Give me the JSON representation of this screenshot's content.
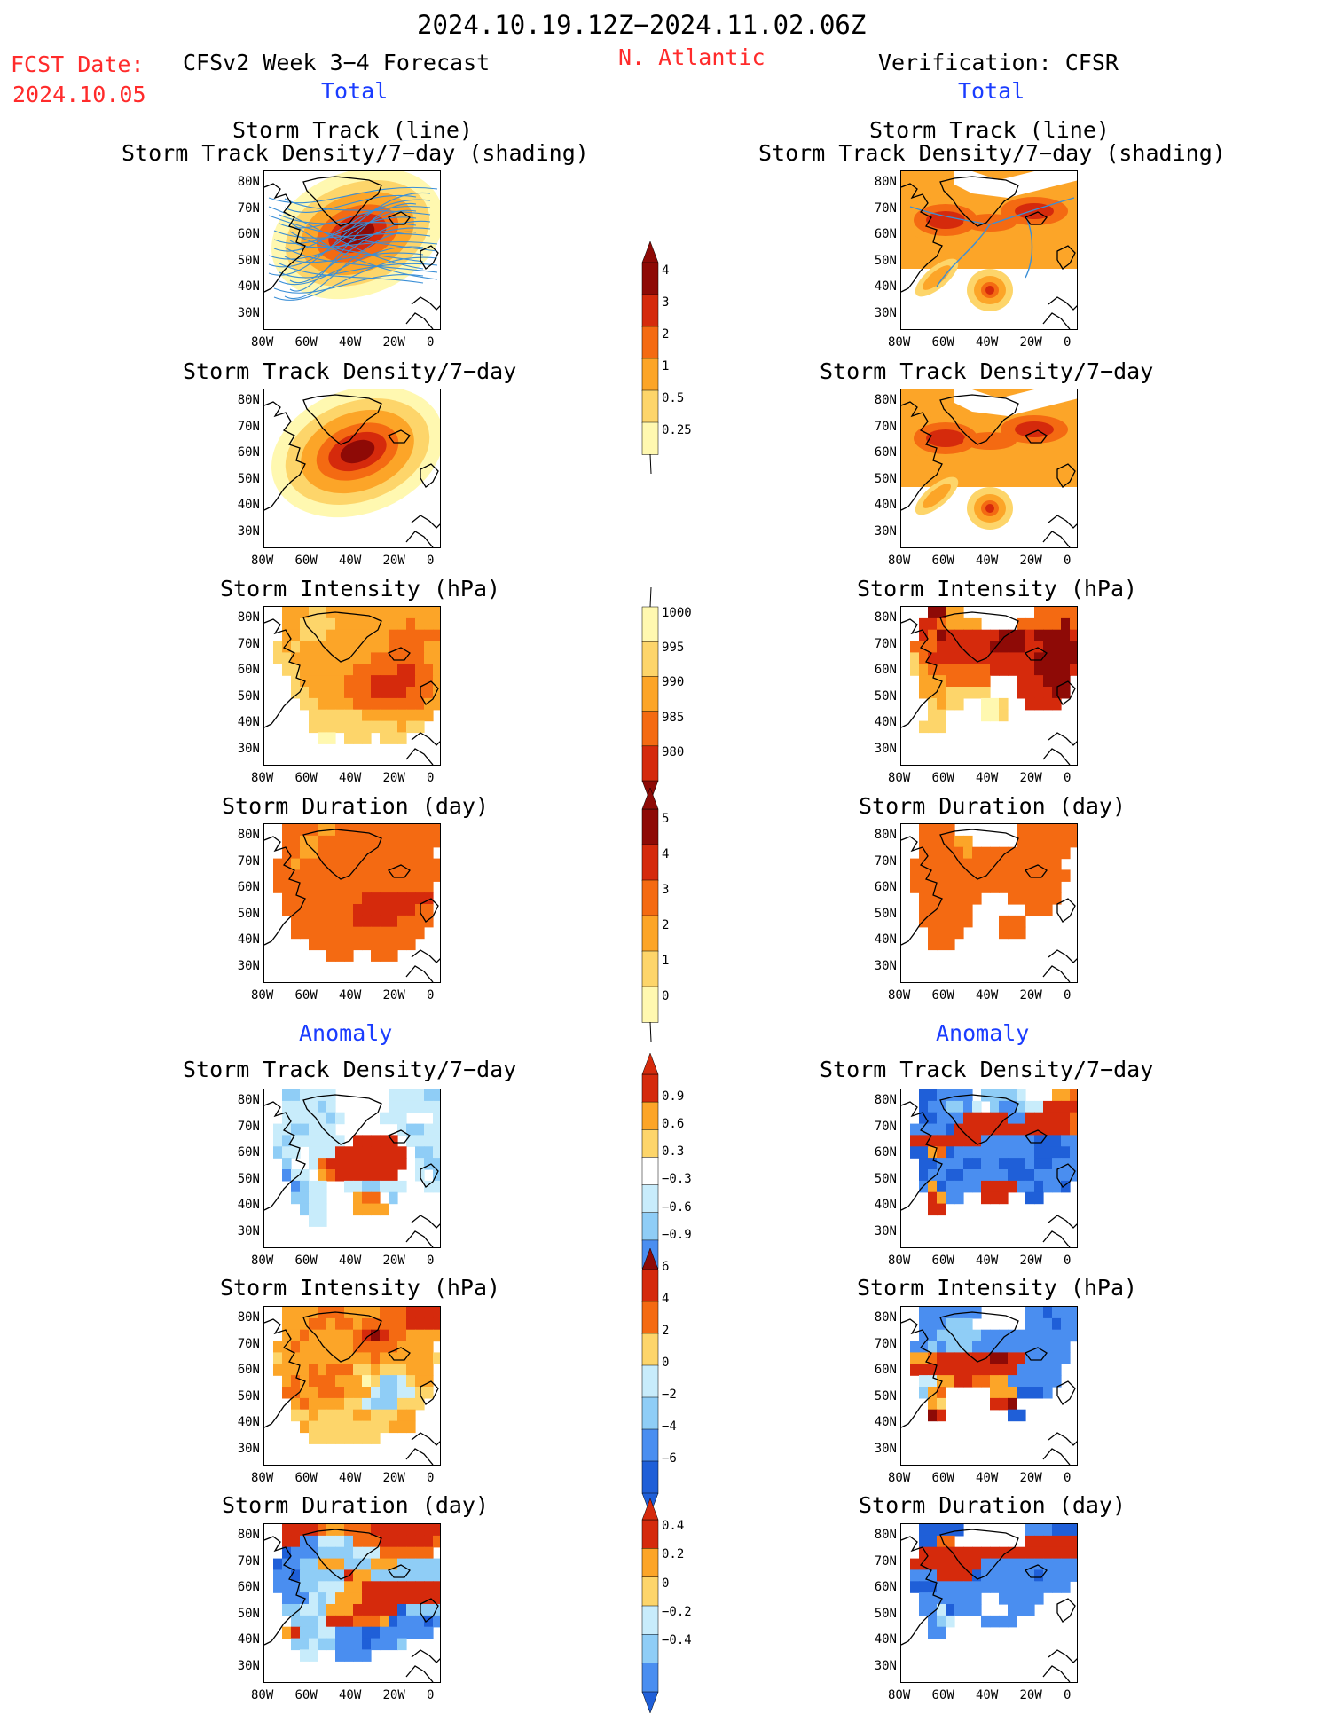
{
  "header": {
    "date_range": "2024.10.19.12Z−2024.11.02.06Z",
    "region": "N. Atlantic",
    "fcst_label": "FCST Date:",
    "fcst_date": "2024.10.05",
    "left_title": "CFSv2 Week 3−4 Forecast",
    "right_title": "Verification: CFSR",
    "total_label": "Total",
    "anomaly_label": "Anomaly"
  },
  "panel_titles": {
    "track_line": "Storm Track (line)",
    "track_shading": "Storm Track Density/7−day (shading)",
    "density": "Storm Track Density/7−day",
    "intensity": "Storm Intensity (hPa)",
    "duration": "Storm Duration (day)"
  },
  "axes": {
    "lat_labels": [
      "80N",
      "70N",
      "60N",
      "50N",
      "40N",
      "30N"
    ],
    "lon_labels": [
      "80W",
      "60W",
      "40W",
      "20W",
      "0"
    ]
  },
  "colorbars": {
    "density_total": [
      "4",
      "3",
      "2",
      "1",
      "0.5",
      "0.25"
    ],
    "intensity_total": [
      "1000",
      "995",
      "990",
      "985",
      "980"
    ],
    "duration_total": [
      "5",
      "4",
      "3",
      "2",
      "1",
      "0"
    ],
    "density_anom": [
      "0.9",
      "0.6",
      "0.3",
      "−0.3",
      "−0.6",
      "−0.9"
    ],
    "intensity_anom": [
      "6",
      "4",
      "2",
      "0",
      "−2",
      "−4",
      "−6"
    ],
    "duration_anom": [
      "0.4",
      "0.2",
      "0",
      "−0.2",
      "−0.4"
    ]
  },
  "colors": {
    "title_red": "#ff2b2b",
    "label_blue": "#1a3cff",
    "warm": [
      "#fff8b0",
      "#fdd56a",
      "#fca528",
      "#f46a12",
      "#d52a0c",
      "#8e0a06"
    ],
    "cool": [
      "#c8ecfb",
      "#8fcdf6",
      "#4a8ef0",
      "#1f5fd8"
    ]
  }
}
